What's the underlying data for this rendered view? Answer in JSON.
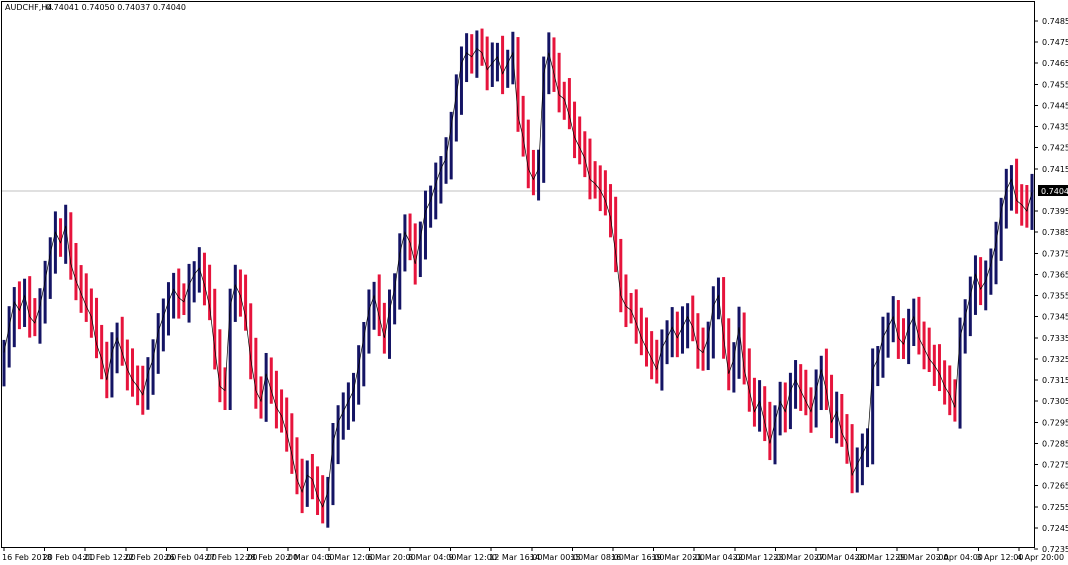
{
  "chart_info": {
    "symbol_timeframe": "AUDCHF,H4",
    "ohlc_text": "0.74041 0.74050 0.74037 0.74040"
  },
  "current_price_label": "0.74040",
  "colors": {
    "bull": "#141464",
    "bear": "#e6143c",
    "price_line": "#c0c0c0",
    "price_label_bg": "#000000",
    "background": "#ffffff"
  },
  "chart_data": {
    "type": "bar",
    "chart_style": "ohlc-thick-bars-with-close-line",
    "title": "AUDCHF,H4",
    "ylim": [
      0.7235,
      0.749
    ],
    "current_price": 0.7404,
    "y_ticks": [
      "0.74850",
      "0.74750",
      "0.74650",
      "0.74550",
      "0.74450",
      "0.74350",
      "0.74250",
      "0.74150",
      "0.73950",
      "0.73850",
      "0.73750",
      "0.73650",
      "0.73550",
      "0.73450",
      "0.73350",
      "0.73250",
      "0.73150",
      "0.73050",
      "0.72950",
      "0.72850",
      "0.72750",
      "0.72650",
      "0.72550",
      "0.72450",
      "0.72350"
    ],
    "x_ticks": [
      "16 Feb 2018",
      "20 Feb 04:00",
      "21 Feb 12:00",
      "22 Feb 20:00",
      "26 Feb 04:00",
      "27 Feb 12:00",
      "28 Feb 20:00",
      "2 Mar 04:00",
      "5 Mar 12:00",
      "6 Mar 20:00",
      "8 Mar 04:00",
      "9 Mar 12:00",
      "12 Mar 16:00",
      "14 Mar 00:00",
      "15 Mar 08:00",
      "16 Mar 16:00",
      "19 Mar 20:00",
      "21 Mar 04:00",
      "22 Mar 12:00",
      "23 Mar 20:00",
      "27 Mar 04:00",
      "28 Mar 12:00",
      "29 Mar 20:00",
      "2 Apr 04:00",
      "3 Apr 12:00",
      "4 Apr 20:00"
    ],
    "close_series": [
      0.7328,
      0.734,
      0.7352,
      0.7348,
      0.7355,
      0.7345,
      0.7342,
      0.735,
      0.7362,
      0.7375,
      0.7385,
      0.738,
      0.7388,
      0.737,
      0.7362,
      0.7356,
      0.735,
      0.7345,
      0.7332,
      0.7325,
      0.7315,
      0.7328,
      0.7335,
      0.7328,
      0.732,
      0.7315,
      0.7312,
      0.7308,
      0.7318,
      0.7325,
      0.7338,
      0.7345,
      0.7352,
      0.7358,
      0.7354,
      0.7352,
      0.736,
      0.7365,
      0.7368,
      0.736,
      0.735,
      0.733,
      0.7312,
      0.731,
      0.735,
      0.736,
      0.7355,
      0.7345,
      0.7325,
      0.731,
      0.7305,
      0.7318,
      0.731,
      0.7302,
      0.7298,
      0.729,
      0.728,
      0.7268,
      0.7262,
      0.727,
      0.7268,
      0.726,
      0.7255,
      0.7262,
      0.7285,
      0.7295,
      0.73,
      0.7305,
      0.731,
      0.7322,
      0.7335,
      0.7348,
      0.7355,
      0.7345,
      0.7335,
      0.7348,
      0.7358,
      0.7375,
      0.7385,
      0.738,
      0.737,
      0.7382,
      0.7395,
      0.74,
      0.7408,
      0.7415,
      0.742,
      0.7435,
      0.745,
      0.7465,
      0.747,
      0.7468,
      0.7472,
      0.747,
      0.7462,
      0.7465,
      0.7468,
      0.746,
      0.7465,
      0.747,
      0.744,
      0.743,
      0.7415,
      0.741,
      0.7415,
      0.746,
      0.747,
      0.746,
      0.745,
      0.7448,
      0.744,
      0.743,
      0.7425,
      0.742,
      0.741,
      0.7408,
      0.7405,
      0.74,
      0.7392,
      0.7375,
      0.7355,
      0.735,
      0.7348,
      0.7342,
      0.7335,
      0.733,
      0.7325,
      0.732,
      0.733,
      0.7335,
      0.734,
      0.7335,
      0.734,
      0.7345,
      0.734,
      0.733,
      0.7328,
      0.7335,
      0.735,
      0.7355,
      0.7335,
      0.7318,
      0.7325,
      0.734,
      0.732,
      0.731,
      0.73,
      0.7305,
      0.7295,
      0.7285,
      0.7295,
      0.7305,
      0.73,
      0.731,
      0.7315,
      0.731,
      0.7305,
      0.73,
      0.731,
      0.732,
      0.731,
      0.7295,
      0.73,
      0.729,
      0.7285,
      0.727,
      0.7275,
      0.728,
      0.7285,
      0.732,
      0.7325,
      0.7335,
      0.734,
      0.7345,
      0.7335,
      0.7332,
      0.734,
      0.7345,
      0.7335,
      0.733,
      0.7325,
      0.7322,
      0.7318,
      0.7312,
      0.7308,
      0.7302,
      0.7335,
      0.7345,
      0.7355,
      0.7365,
      0.7358,
      0.7362,
      0.737,
      0.738,
      0.7395,
      0.7405,
      0.741,
      0.74,
      0.7398,
      0.7395,
      0.7404
    ]
  }
}
